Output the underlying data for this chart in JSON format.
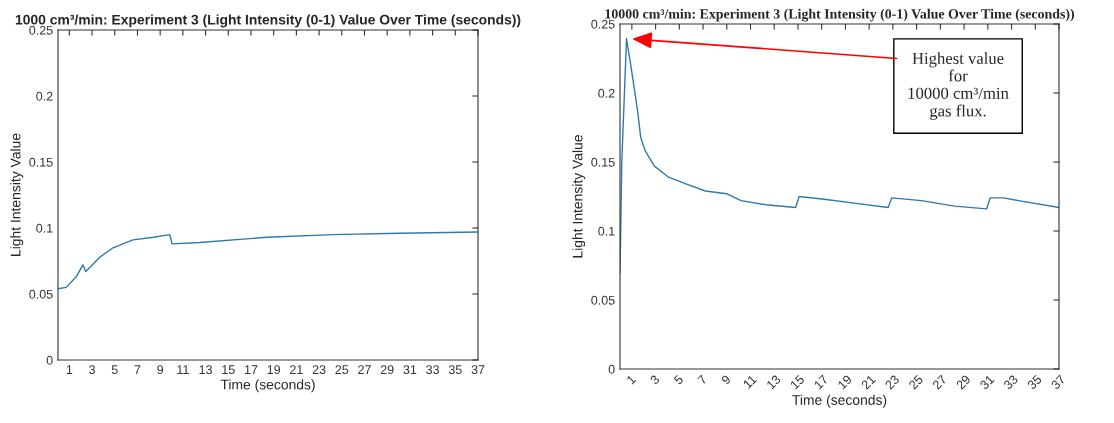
{
  "chart_data": [
    {
      "type": "line",
      "title": "1000 cm³/min: Experiment 3 (Light Intensity (0-1) Value Over Time (seconds))",
      "xlabel": "Time (seconds)",
      "ylabel": "Light Intensity Value",
      "x": [
        0,
        0.73,
        1.6,
        2.2,
        2.45,
        3.7,
        4.85,
        6.6,
        8.4,
        9.85,
        10.05,
        12.5,
        18.4,
        24.2,
        30.1,
        37
      ],
      "series": [
        {
          "color": "#2e7ab0",
          "values": [
            0.054,
            0.055,
            0.063,
            0.072,
            0.067,
            0.078,
            0.085,
            0.091,
            0.093,
            0.095,
            0.088,
            0.089,
            0.093,
            0.095,
            0.096,
            0.097
          ]
        }
      ],
      "xlim": [
        0,
        37
      ],
      "ylim": [
        0,
        0.25
      ],
      "xticks": [
        1,
        3,
        5,
        7,
        9,
        11,
        13,
        15,
        17,
        19,
        21,
        23,
        25,
        27,
        29,
        31,
        33,
        35,
        37
      ],
      "yticks": [
        0,
        0.05,
        0.1,
        0.15,
        0.2,
        0.25
      ],
      "grid": false,
      "legend": false
    },
    {
      "type": "line",
      "title": "10000 cm³/min: Experiment 3 (Light Intensity (0-1) Value Over Time (seconds))",
      "xlabel": "Time (seconds)",
      "ylabel": "Light Intensity Value",
      "x": [
        0,
        0.15,
        0.55,
        1.0,
        1.5,
        1.74,
        2.13,
        2.9,
        4.1,
        5.6,
        7.2,
        8.98,
        10.2,
        12.3,
        14.8,
        15.1,
        17.2,
        19.9,
        22.6,
        22.9,
        25.4,
        28.2,
        30.9,
        31.2,
        32.3,
        33.6,
        37
      ],
      "series": [
        {
          "color": "#2e7ab0",
          "values": [
            0.069,
            0.15,
            0.2395,
            0.215,
            0.186,
            0.168,
            0.158,
            0.147,
            0.139,
            0.134,
            0.129,
            0.127,
            0.122,
            0.119,
            0.117,
            0.125,
            0.123,
            0.12,
            0.117,
            0.124,
            0.122,
            0.118,
            0.116,
            0.124,
            0.124,
            0.122,
            0.117
          ]
        }
      ],
      "xlim": [
        0,
        37
      ],
      "ylim": [
        0,
        0.25
      ],
      "xticks": [
        1,
        3,
        5,
        7,
        9,
        11,
        13,
        15,
        17,
        19,
        21,
        23,
        25,
        27,
        29,
        31,
        33,
        35,
        37
      ],
      "yticks": [
        0,
        0.05,
        0.1,
        0.15,
        0.2,
        0.25
      ],
      "grid": false,
      "legend": false,
      "annotations": [
        "Highest value\nfor\n10000 cm³/min\ngas flux."
      ]
    }
  ]
}
